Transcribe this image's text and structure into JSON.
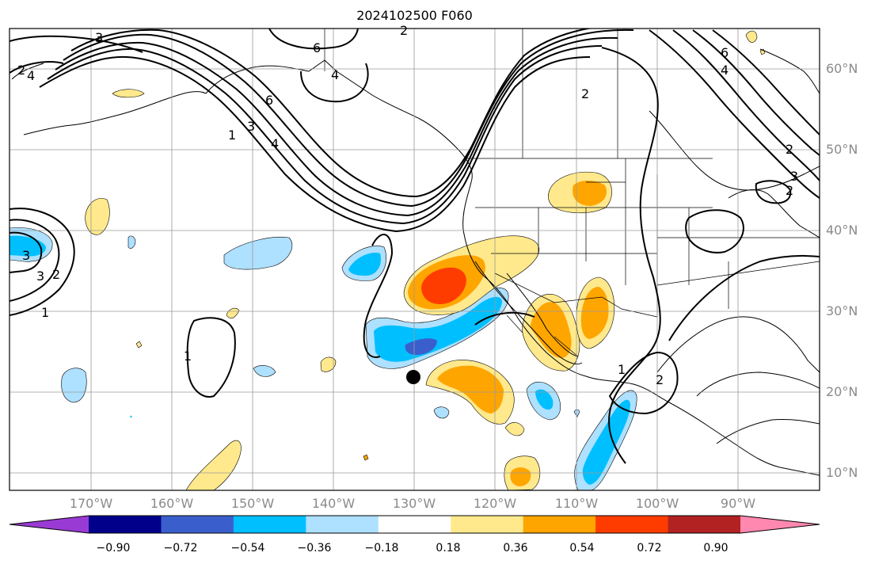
{
  "title": "2024102500 F060",
  "latitude_labels": [
    "60°N",
    "50°N",
    "40°N",
    "30°N",
    "20°N",
    "10°N"
  ],
  "longitude_labels": [
    "170°W",
    "160°W",
    "150°W",
    "140°W",
    "130°W",
    "120°W",
    "110°W",
    "100°W",
    "90°W"
  ],
  "colorbar": {
    "ticks": [
      "−0.90",
      "−0.72",
      "−0.54",
      "−0.36",
      "−0.18",
      "0.18",
      "0.36",
      "0.54",
      "0.72",
      "0.90"
    ],
    "colors": [
      "#9a3ad4",
      "#00008b",
      "#3a5fcd",
      "#00bfff",
      "#aee0ff",
      "#ffffff",
      "#ffe98c",
      "#ffa500",
      "#ff3c00",
      "#b22222",
      "#ff88b0"
    ]
  },
  "contour_labels": [
    "3",
    "4",
    "2",
    "6",
    "6",
    "3",
    "2",
    "1",
    "4",
    "3",
    "4",
    "3",
    "2",
    "1",
    "2",
    "1",
    "1",
    "2",
    "2",
    "6",
    "4",
    "3",
    "2"
  ],
  "marker": "storm-center"
}
